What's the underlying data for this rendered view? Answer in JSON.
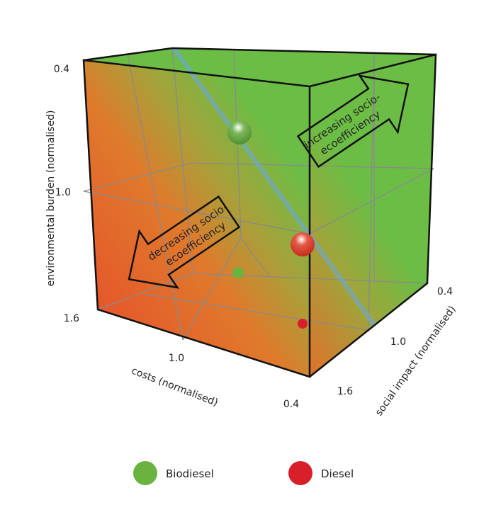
{
  "chart_data": {
    "type": "scatter3d",
    "axes": {
      "y": {
        "label": "environmental burden (normalised)",
        "ticks": [
          "0.4",
          "1.0",
          "1.6"
        ],
        "range": [
          1.6,
          0.4
        ]
      },
      "x": {
        "label": "costs (normalised)",
        "ticks": [
          "1.0",
          "0.4"
        ],
        "range": [
          1.6,
          0.4
        ]
      },
      "z": {
        "label": "social impact (normalised)",
        "ticks": [
          "0.4",
          "1.0",
          "1.6"
        ],
        "range": [
          1.6,
          0.4
        ]
      }
    },
    "grid": true,
    "annotations": [
      "increasing socio-",
      "ecoefficiency",
      "decreasing socio-",
      "ecoefficiency"
    ],
    "series": [
      {
        "name": "Biodiesel",
        "color": "#6ab33e",
        "points": [
          {
            "costs": 1.0,
            "social_impact": 1.0,
            "environmental_burden": 0.75
          }
        ]
      },
      {
        "name": "Diesel",
        "color": "#d8202a",
        "points": [
          {
            "costs": 0.6,
            "social_impact": 1.0,
            "environmental_burden": 1.25
          }
        ]
      }
    ],
    "legend": "bottom",
    "colors": {
      "green": "#6cbd45",
      "orange": "#e0702a",
      "red": "#e8482a",
      "plane": "#6aa8d8"
    }
  }
}
